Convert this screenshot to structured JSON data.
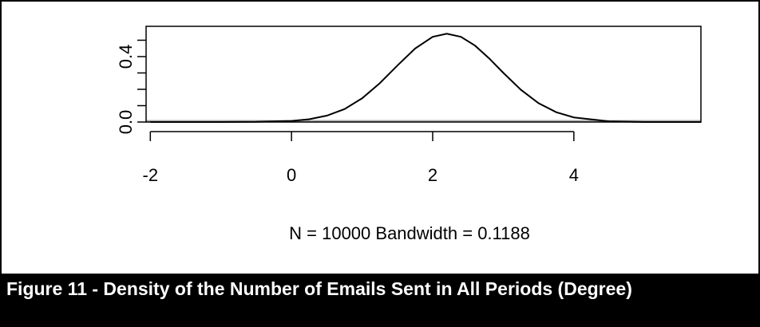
{
  "chart_data": {
    "type": "line",
    "xlabel": "N = 10000   Bandwidth = 0.1188",
    "caption": "Figure 11 - Density of the Number of Emails Sent in All Periods (Degree)",
    "x": [
      -2,
      -1,
      -0.5,
      0,
      0.25,
      0.5,
      0.75,
      1,
      1.25,
      1.5,
      1.75,
      2,
      2.2,
      2.4,
      2.6,
      2.8,
      3,
      3.25,
      3.5,
      3.75,
      4,
      4.5,
      5,
      5.5,
      5.8
    ],
    "series": [
      {
        "color": "#000000",
        "values": [
          0,
          0,
          0.001,
          0.007,
          0.017,
          0.039,
          0.079,
          0.145,
          0.237,
          0.345,
          0.449,
          0.521,
          0.54,
          0.521,
          0.467,
          0.389,
          0.301,
          0.197,
          0.115,
          0.06,
          0.028,
          0.004,
          0,
          0,
          0
        ]
      }
    ],
    "xlim": [
      -2.06,
      5.8
    ],
    "ylim": [
      0,
      0.585
    ],
    "xticks": [
      -2,
      0,
      2,
      4
    ],
    "yticks": [
      {
        "value": 0,
        "label": "0.0"
      },
      {
        "value": 0.1,
        "label": null
      },
      {
        "value": 0.2,
        "label": null
      },
      {
        "value": 0.3,
        "label": null
      },
      {
        "value": 0.4,
        "label": "0.4"
      },
      {
        "value": 0.5,
        "label": null
      }
    ]
  }
}
